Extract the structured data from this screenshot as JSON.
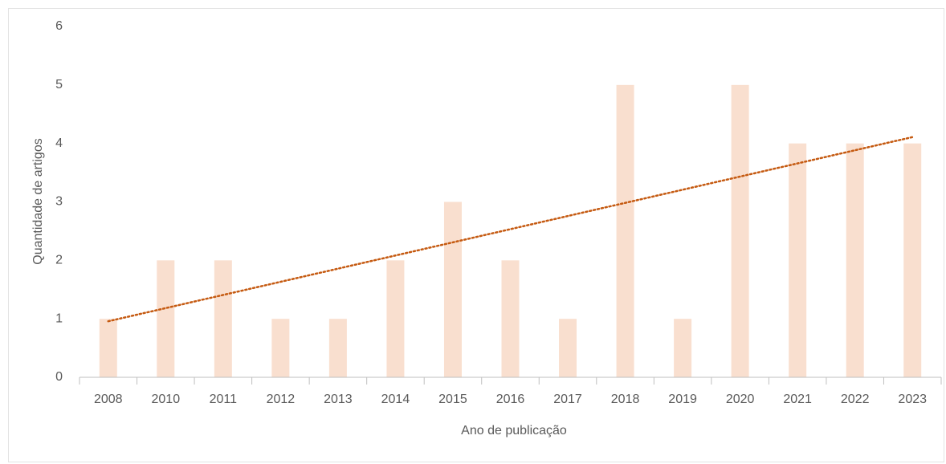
{
  "chart_data": {
    "type": "bar",
    "x_label": "Ano de publicação",
    "y_label": "Quantidade de artigos",
    "categories": [
      "2008",
      "2010",
      "2011",
      "2012",
      "2013",
      "2014",
      "2015",
      "2016",
      "2017",
      "2018",
      "2019",
      "2020",
      "2021",
      "2022",
      "2023"
    ],
    "values": [
      1,
      2,
      2,
      1,
      1,
      2,
      3,
      2,
      1,
      5,
      1,
      5,
      4,
      4,
      4
    ],
    "color": "#f9dfcf",
    "trendline": {
      "type": "linear",
      "color": "#c55a11"
    },
    "ylim": [
      0,
      6
    ],
    "yticks": [
      0,
      1,
      2,
      3,
      4,
      5,
      6
    ],
    "grid": false
  }
}
